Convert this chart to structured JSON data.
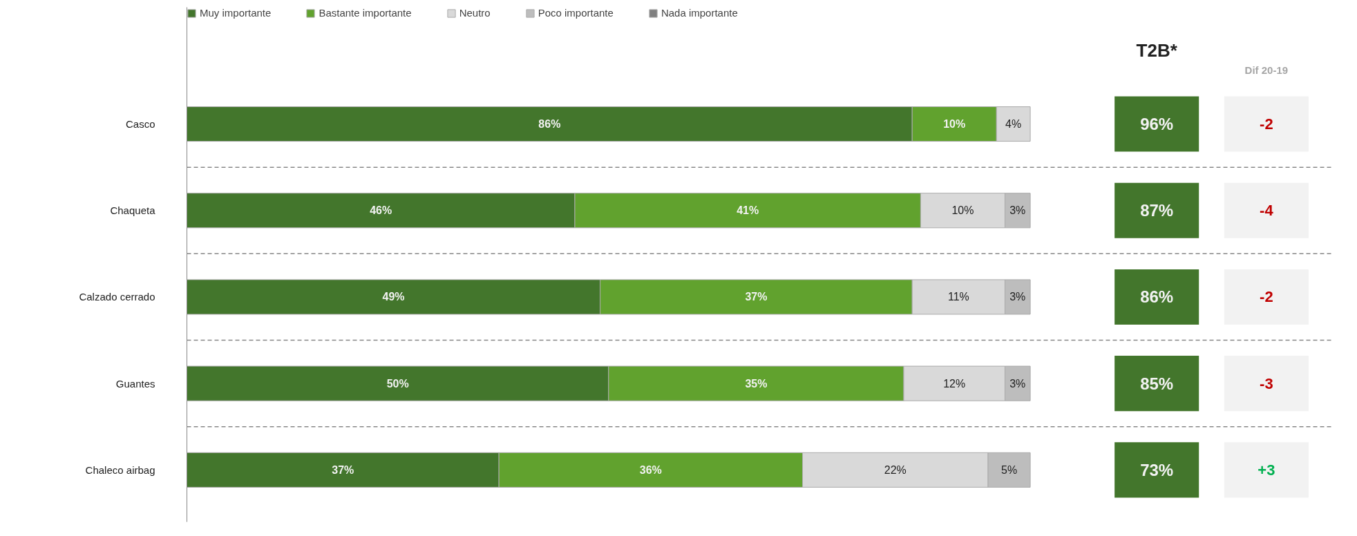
{
  "chart_data": {
    "type": "bar",
    "orientation": "horizontal",
    "stacked": true,
    "categories": [
      "Casco",
      "Chaqueta",
      "Calzado cerrado",
      "Guantes",
      "Chaleco airbag"
    ],
    "series": [
      {
        "name": "Muy importante",
        "color": "#43762c",
        "values": [
          86,
          46,
          49,
          50,
          37
        ],
        "value_labels": [
          "86%",
          "46%",
          "49%",
          "50%",
          "37%"
        ]
      },
      {
        "name": "Bastante importante",
        "color": "#61a22e",
        "values": [
          10,
          41,
          37,
          35,
          36
        ],
        "value_labels": [
          "10%",
          "41%",
          "37%",
          "35%",
          "36%"
        ]
      },
      {
        "name": "Neutro",
        "color": "#d9d9d9",
        "values": [
          4,
          10,
          11,
          12,
          22
        ],
        "value_labels": [
          "4%",
          "10%",
          "11%",
          "12%",
          "22%"
        ]
      },
      {
        "name": "Poco importante",
        "color": "#bdbdbd",
        "values": [
          null,
          3,
          3,
          3,
          5
        ],
        "value_labels": [
          null,
          "3%",
          "3%",
          "3%",
          "5%"
        ]
      },
      {
        "name": "Nada importante",
        "color": "#808080",
        "values": [
          null,
          null,
          null,
          null,
          null
        ]
      }
    ],
    "legend": "top",
    "grid": "y",
    "tick_labels": "y",
    "annotations": [
      "T2B*",
      "96%",
      "87%",
      "86%",
      "85%",
      "73%",
      "Dif 20-19",
      "-2",
      "-4",
      "-2",
      "-3",
      "+3"
    ]
  }
}
